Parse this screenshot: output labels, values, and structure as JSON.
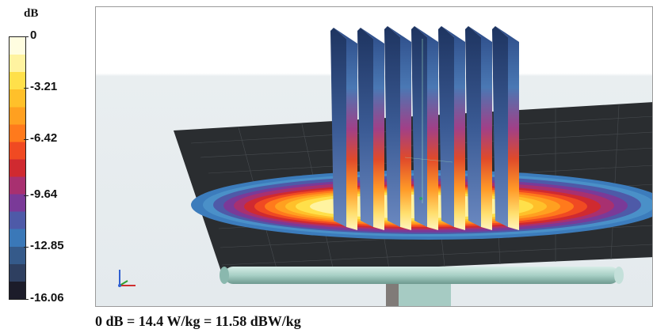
{
  "legend": {
    "unit": "dB",
    "ticks": [
      "0",
      "-3.21",
      "-6.42",
      "-9.64",
      "-12.85",
      "-16.06"
    ],
    "colors": [
      "#fffde0",
      "#fff3a0",
      "#ffe04a",
      "#ffc02a",
      "#ffa020",
      "#ff7a1c",
      "#f04a22",
      "#d02a30",
      "#a83070",
      "#7a3a98",
      "#4e5aa8",
      "#3a78b8",
      "#355a8a",
      "#2e3f60",
      "#1c1c2a"
    ]
  },
  "caption": "0 dB = 14.4 W/kg = 11.58 dBW/kg",
  "axes_triad": {
    "x_color": "#d03030",
    "y_color": "#30a030",
    "z_color": "#3060d0"
  }
}
